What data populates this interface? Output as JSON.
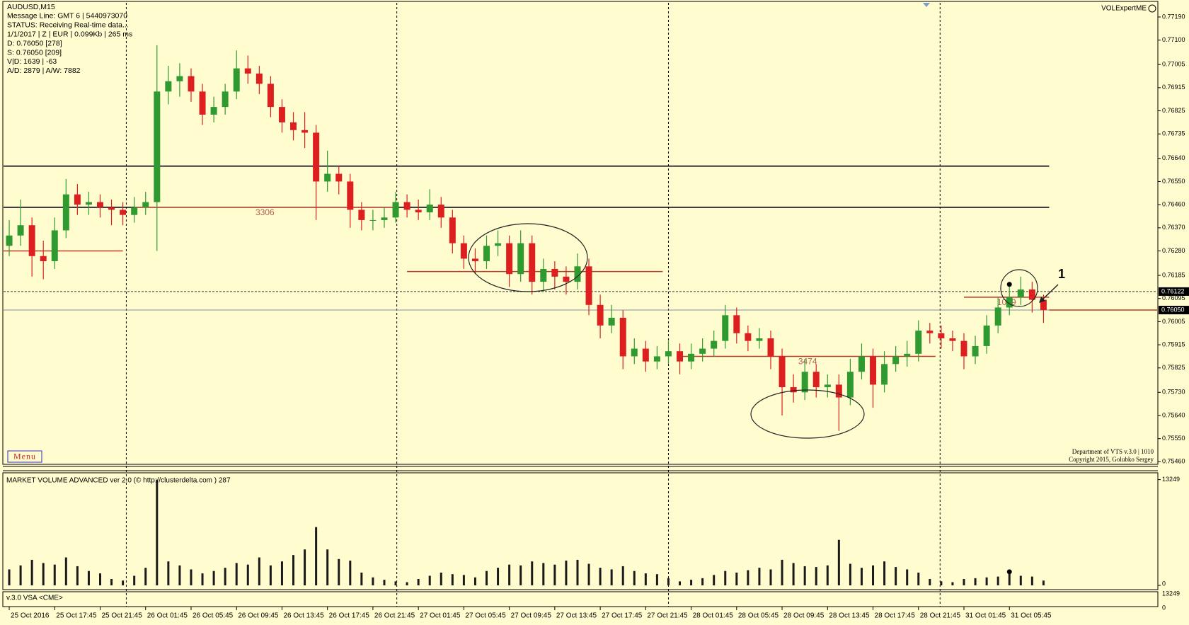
{
  "header": {
    "info_lines": [
      "AUDUSD,M15",
      "Message Line: GMT 6 | 5440973070",
      "STATUS:  Receiving Real-time data...",
      "1/1/2017 | Z | EUR | 0.099Kb | 265 ms",
      "D: 0.76050  [278]",
      "S: 0.76050  [209]",
      "V|D: 1639 | -63",
      "A/D: 2879 | A/W: 7882"
    ],
    "brand": "VOLExpertME",
    "credits": [
      "Department of VTS  v.3.0 | 1010",
      "Copyright 2015, Golubko Sergey"
    ],
    "menu": "Menu"
  },
  "chart_data": {
    "type": "candlestick",
    "bull_color": "#2f9a2f",
    "bear_color": "#dd1f1f",
    "ohlc": [
      [
        0.763,
        0.764,
        0.7626,
        0.7634
      ],
      [
        0.7634,
        0.7648,
        0.763,
        0.7638
      ],
      [
        0.7638,
        0.7641,
        0.7618,
        0.7626
      ],
      [
        0.7626,
        0.7632,
        0.7617,
        0.7624
      ],
      [
        0.7624,
        0.7641,
        0.7621,
        0.7636
      ],
      [
        0.7636,
        0.7656,
        0.7633,
        0.765
      ],
      [
        0.765,
        0.7654,
        0.7642,
        0.7646
      ],
      [
        0.7646,
        0.7651,
        0.7642,
        0.7647
      ],
      [
        0.7647,
        0.765,
        0.7641,
        0.7645
      ],
      [
        0.7645,
        0.7648,
        0.7638,
        0.7644
      ],
      [
        0.7644,
        0.7647,
        0.7638,
        0.7642
      ],
      [
        0.7642,
        0.7649,
        0.7639,
        0.7645
      ],
      [
        0.7645,
        0.7651,
        0.7642,
        0.7647
      ],
      [
        0.7647,
        0.7708,
        0.7628,
        0.769
      ],
      [
        0.769,
        0.77,
        0.7685,
        0.7694
      ],
      [
        0.7694,
        0.7701,
        0.7688,
        0.7696
      ],
      [
        0.7696,
        0.7699,
        0.7686,
        0.769
      ],
      [
        0.769,
        0.7693,
        0.7677,
        0.7681
      ],
      [
        0.7681,
        0.7688,
        0.7678,
        0.7684
      ],
      [
        0.7684,
        0.7693,
        0.7681,
        0.769
      ],
      [
        0.769,
        0.7706,
        0.7687,
        0.7699
      ],
      [
        0.7699,
        0.7704,
        0.7693,
        0.7697
      ],
      [
        0.7697,
        0.77,
        0.7689,
        0.7693
      ],
      [
        0.7693,
        0.7696,
        0.768,
        0.7684
      ],
      [
        0.7684,
        0.7687,
        0.7674,
        0.7678
      ],
      [
        0.7678,
        0.7682,
        0.7671,
        0.7675
      ],
      [
        0.7675,
        0.7682,
        0.7668,
        0.7674
      ],
      [
        0.7674,
        0.7677,
        0.764,
        0.7655
      ],
      [
        0.7655,
        0.7667,
        0.7651,
        0.7658
      ],
      [
        0.7658,
        0.7661,
        0.765,
        0.7655
      ],
      [
        0.7655,
        0.7658,
        0.7637,
        0.7644
      ],
      [
        0.7644,
        0.7647,
        0.7636,
        0.764
      ],
      [
        0.764,
        0.7644,
        0.7636,
        0.764
      ],
      [
        0.764,
        0.7645,
        0.7637,
        0.7641
      ],
      [
        0.7641,
        0.7651,
        0.7639,
        0.7647
      ],
      [
        0.7647,
        0.765,
        0.7641,
        0.7644
      ],
      [
        0.7644,
        0.7648,
        0.764,
        0.7643
      ],
      [
        0.7643,
        0.7652,
        0.764,
        0.7646
      ],
      [
        0.7646,
        0.7649,
        0.7637,
        0.7641
      ],
      [
        0.7641,
        0.7644,
        0.7627,
        0.7631
      ],
      [
        0.7631,
        0.7634,
        0.7621,
        0.7625
      ],
      [
        0.7625,
        0.7629,
        0.7619,
        0.7624
      ],
      [
        0.7624,
        0.7634,
        0.7621,
        0.763
      ],
      [
        0.763,
        0.7636,
        0.7626,
        0.7631
      ],
      [
        0.7631,
        0.7634,
        0.7614,
        0.7619
      ],
      [
        0.7619,
        0.7636,
        0.7616,
        0.7631
      ],
      [
        0.7631,
        0.7634,
        0.7611,
        0.7616
      ],
      [
        0.7616,
        0.7625,
        0.7612,
        0.7621
      ],
      [
        0.7621,
        0.7624,
        0.7613,
        0.7618
      ],
      [
        0.7618,
        0.7622,
        0.7611,
        0.7616
      ],
      [
        0.7616,
        0.7627,
        0.7613,
        0.7622
      ],
      [
        0.7622,
        0.7625,
        0.7603,
        0.7607
      ],
      [
        0.7607,
        0.7611,
        0.7594,
        0.7599
      ],
      [
        0.7599,
        0.7607,
        0.7596,
        0.7602
      ],
      [
        0.7602,
        0.7605,
        0.7582,
        0.7587
      ],
      [
        0.7587,
        0.7594,
        0.7584,
        0.759
      ],
      [
        0.759,
        0.7593,
        0.7581,
        0.7585
      ],
      [
        0.7585,
        0.7591,
        0.7582,
        0.7587
      ],
      [
        0.7587,
        0.7593,
        0.7584,
        0.7589
      ],
      [
        0.7589,
        0.7592,
        0.758,
        0.7585
      ],
      [
        0.7585,
        0.7592,
        0.7582,
        0.7588
      ],
      [
        0.7588,
        0.7594,
        0.7585,
        0.759
      ],
      [
        0.759,
        0.7597,
        0.7587,
        0.7593
      ],
      [
        0.7593,
        0.7607,
        0.759,
        0.7603
      ],
      [
        0.7603,
        0.7606,
        0.7592,
        0.7596
      ],
      [
        0.7596,
        0.7599,
        0.7589,
        0.7593
      ],
      [
        0.7593,
        0.7598,
        0.759,
        0.7594
      ],
      [
        0.7594,
        0.7597,
        0.7582,
        0.7587
      ],
      [
        0.7587,
        0.759,
        0.7564,
        0.7575
      ],
      [
        0.7575,
        0.758,
        0.7569,
        0.7573
      ],
      [
        0.7573,
        0.7586,
        0.757,
        0.7581
      ],
      [
        0.7581,
        0.7584,
        0.7571,
        0.7575
      ],
      [
        0.7575,
        0.758,
        0.7571,
        0.7576
      ],
      [
        0.7576,
        0.758,
        0.7558,
        0.7571
      ],
      [
        0.7571,
        0.7586,
        0.7568,
        0.7581
      ],
      [
        0.7581,
        0.7592,
        0.7578,
        0.7587
      ],
      [
        0.7587,
        0.759,
        0.7567,
        0.7576
      ],
      [
        0.7576,
        0.7589,
        0.7573,
        0.7584
      ],
      [
        0.7584,
        0.7591,
        0.7581,
        0.7587
      ],
      [
        0.7587,
        0.7593,
        0.7583,
        0.7588
      ],
      [
        0.7588,
        0.7601,
        0.7585,
        0.7597
      ],
      [
        0.7597,
        0.76,
        0.7592,
        0.7596
      ],
      [
        0.7596,
        0.7599,
        0.759,
        0.7594
      ],
      [
        0.7594,
        0.7597,
        0.7589,
        0.7593
      ],
      [
        0.7593,
        0.7596,
        0.7582,
        0.7587
      ],
      [
        0.7587,
        0.7595,
        0.7584,
        0.7591
      ],
      [
        0.7591,
        0.7603,
        0.7588,
        0.7599
      ],
      [
        0.7599,
        0.761,
        0.7596,
        0.7606
      ],
      [
        0.7606,
        0.7614,
        0.7603,
        0.761
      ],
      [
        0.761,
        0.7618,
        0.7607,
        0.7613
      ],
      [
        0.7613,
        0.7616,
        0.7604,
        0.7609
      ],
      [
        0.7609,
        0.7611,
        0.76,
        0.7605
      ]
    ],
    "xlim": [
      -0.5,
      101
    ],
    "xticks": [
      {
        "value": 0,
        "label": "25 Oct 2016"
      },
      {
        "value": 4,
        "label": "25 Oct 17:45"
      },
      {
        "value": 8,
        "label": "25 Oct 21:45"
      },
      {
        "value": 12,
        "label": "26 Oct 01:45"
      },
      {
        "value": 16,
        "label": "26 Oct 05:45"
      },
      {
        "value": 20,
        "label": "26 Oct 09:45"
      },
      {
        "value": 24,
        "label": "26 Oct 13:45"
      },
      {
        "value": 28,
        "label": "26 Oct 17:45"
      },
      {
        "value": 32,
        "label": "26 Oct 21:45"
      },
      {
        "value": 36,
        "label": "27 Oct 01:45"
      },
      {
        "value": 40,
        "label": "27 Oct 05:45"
      },
      {
        "value": 44,
        "label": "27 Oct 09:45"
      },
      {
        "value": 48,
        "label": "27 Oct 13:45"
      },
      {
        "value": 52,
        "label": "27 Oct 17:45"
      },
      {
        "value": 56,
        "label": "27 Oct 21:45"
      },
      {
        "value": 60,
        "label": "28 Oct 01:45"
      },
      {
        "value": 64,
        "label": "28 Oct 05:45"
      },
      {
        "value": 68,
        "label": "28 Oct 09:45"
      },
      {
        "value": 72,
        "label": "28 Oct 13:45"
      },
      {
        "value": 76,
        "label": "28 Oct 17:45"
      },
      {
        "value": 80,
        "label": "28 Oct 21:45"
      },
      {
        "value": 84,
        "label": "31 Oct 01:45"
      },
      {
        "value": 88,
        "label": "31 Oct 05:45"
      }
    ],
    "ylim": [
      0.7545,
      0.77245
    ],
    "yticks": [
      {
        "value": 0.7719,
        "label": "0.77190"
      },
      {
        "value": 0.771,
        "label": "0.77100"
      },
      0.77005,
      0.76915,
      0.76825,
      0.76735,
      {
        "value": 0.7664,
        "label": "0.76640"
      },
      {
        "value": 0.7655,
        "label": "0.76550"
      },
      {
        "value": 0.7646,
        "label": "0.76460"
      },
      {
        "value": 0.7637,
        "label": "0.76370"
      },
      {
        "value": 0.7628,
        "label": "0.76280"
      },
      0.76185,
      0.76095,
      0.76005,
      0.75915,
      0.75825,
      {
        "value": 0.7573,
        "label": "0.75730"
      },
      {
        "value": 0.7564,
        "label": "0.75640"
      },
      {
        "value": 0.7555,
        "label": "0.75550"
      },
      {
        "value": 0.7546,
        "label": "0.75460"
      }
    ],
    "levels": [
      0.7661,
      0.7645
    ],
    "level_color": "#000000",
    "separators": [
      10.3,
      34.1,
      58,
      81.9
    ],
    "price_markers": [
      {
        "value": 0.76122,
        "line": "dashed",
        "color": "#333333"
      },
      {
        "value": 0.7605,
        "label": "0.76050",
        "line": "solid",
        "color": "#8090a8"
      }
    ],
    "profiles": [
      {
        "poc": 0.7628,
        "from": -0.5,
        "to": 10
      },
      {
        "poc": 0.7645,
        "from": 11,
        "to": 34,
        "volume": 3306
      },
      {
        "poc": 0.762,
        "from": 35,
        "to": 57.5
      },
      {
        "poc": 0.7587,
        "from": 59,
        "to": 81.5,
        "volume": 3474
      },
      {
        "poc": 0.761,
        "from": 84,
        "to": 91.5,
        "volume": 1039
      },
      {
        "poc": 0.7605,
        "from": 91.5,
        "to": 101
      }
    ],
    "profile_color": "#b83a2a",
    "signal": {
      "x": 88,
      "price": 0.7615,
      "volume": 1700
    },
    "volume": {
      "title": "MARKET VOLUME ADVANCED ver 2.0 (© http://clusterdelta.com ) 287",
      "color": "#1a1a1a",
      "ylim": [
        0,
        14100
      ],
      "yticks": [
        13249,
        0
      ],
      "values": [
        2000,
        2500,
        3200,
        2800,
        2600,
        3500,
        2400,
        1800,
        1500,
        800,
        600,
        1200,
        2200,
        13249,
        3000,
        2500,
        2000,
        1500,
        1800,
        2200,
        2800,
        2600,
        3500,
        2500,
        3000,
        3800,
        4500,
        7300,
        4500,
        3300,
        3100,
        1600,
        1000,
        700,
        500,
        400,
        800,
        1200,
        1600,
        1400,
        1300,
        1000,
        1800,
        2200,
        2600,
        2500,
        3000,
        2800,
        2600,
        3100,
        3200,
        2700,
        2200,
        2000,
        2400,
        1800,
        1500,
        1400,
        900,
        500,
        700,
        900,
        1300,
        1800,
        1600,
        1900,
        2200,
        2000,
        3200,
        2800,
        2400,
        2300,
        2500,
        5700,
        2700,
        2200,
        2500,
        3000,
        2300,
        2000,
        1600,
        800,
        500,
        400,
        800,
        900,
        1000,
        1100,
        1700,
        1200,
        1100,
        600
      ]
    },
    "vsa": {
      "title": "v.3.0 VSA <CME>",
      "ylim": [
        0,
        14100
      ],
      "yticks": [
        13249,
        0
      ]
    }
  }
}
